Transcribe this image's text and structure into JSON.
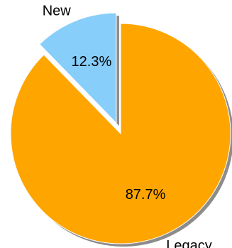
{
  "chart_data": {
    "type": "pie",
    "slices": [
      {
        "label": "Legacy",
        "value": 87.7,
        "display": "87.7%",
        "color": "#FFA500",
        "exploded": false
      },
      {
        "label": "New",
        "value": 12.3,
        "display": "12.3%",
        "color": "#87CEFA",
        "exploded": true
      }
    ],
    "start_angle_deg": 90,
    "direction": "clockwise",
    "shadow": true,
    "shadow_color": "#8C8C8C",
    "edge_color": "#FFFFFF",
    "title": "",
    "legend": "none"
  }
}
